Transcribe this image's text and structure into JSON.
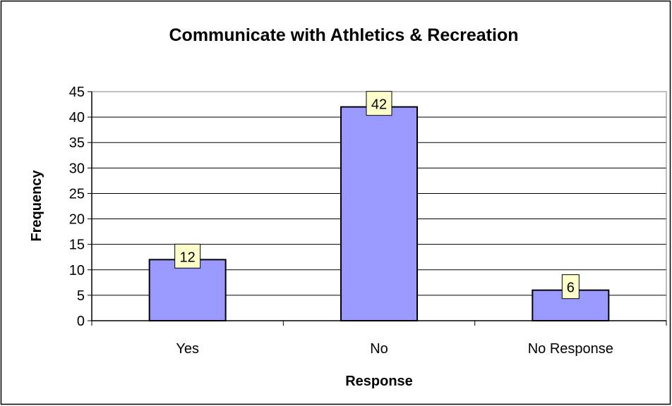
{
  "chart_data": {
    "type": "bar",
    "title": "Communicate with Athletics & Recreation",
    "xlabel": "Response",
    "ylabel": "Frequency",
    "categories": [
      "Yes",
      "No",
      "No Response"
    ],
    "values": [
      12,
      42,
      6
    ],
    "data_labels": [
      "12",
      "42",
      "6"
    ],
    "ylim": [
      0,
      45
    ],
    "yticks": [
      0,
      5,
      10,
      15,
      20,
      25,
      30,
      35,
      40,
      45
    ],
    "ytick_labels": [
      "0",
      "5",
      "10",
      "15",
      "20",
      "25",
      "30",
      "35",
      "40",
      "45"
    ],
    "grid": "horizontal major gridlines",
    "legend": "none",
    "colors": {
      "bar_fill": "#9999ff",
      "bar_stroke": "#000000",
      "data_label_fill": "#ffffcc",
      "gridline": "#000000",
      "frame": "#000000",
      "background": "#ffffff"
    }
  }
}
